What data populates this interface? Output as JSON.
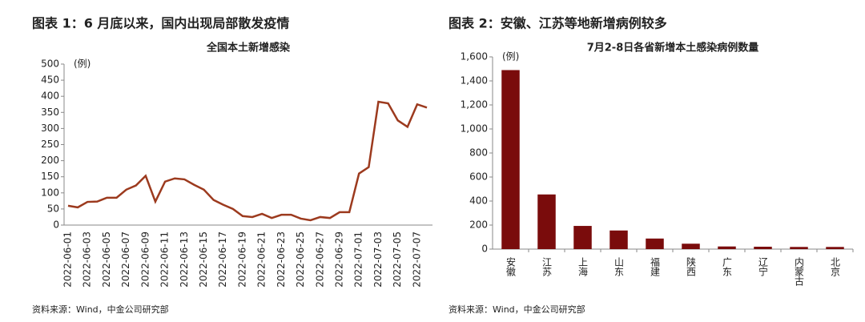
{
  "chart_data": [
    {
      "type": "line",
      "figure_title": "图表 1：6 月底以来，国内出现局部散发疫情",
      "title": "全国本土新增感染",
      "y_unit": "(例)",
      "source": "资料来源：Wind，中金公司研究部",
      "categories": [
        "2022-06-01",
        null,
        "2022-06-03",
        null,
        "2022-06-05",
        null,
        "2022-06-07",
        null,
        "2022-06-09",
        null,
        "2022-06-11",
        null,
        "2022-06-13",
        null,
        "2022-06-15",
        null,
        "2022-06-17",
        null,
        "2022-06-19",
        null,
        "2022-06-21",
        null,
        "2022-06-23",
        null,
        "2022-06-25",
        null,
        "2022-06-27",
        null,
        "2022-06-29",
        null,
        "2022-07-01",
        null,
        "2022-07-03",
        null,
        "2022-07-05",
        null,
        "2022-07-07",
        null
      ],
      "values": [
        60,
        55,
        72,
        73,
        85,
        85,
        110,
        123,
        153,
        73,
        135,
        145,
        142,
        125,
        110,
        78,
        63,
        50,
        28,
        25,
        35,
        22,
        32,
        32,
        20,
        15,
        25,
        22,
        40,
        40,
        160,
        180,
        383,
        378,
        325,
        305,
        375,
        365
      ],
      "color": "#9c3a1e",
      "ylim": [
        0,
        500
      ],
      "yticks": [
        0,
        50,
        100,
        150,
        200,
        250,
        300,
        350,
        400,
        450,
        500
      ]
    },
    {
      "type": "bar",
      "figure_title": "图表 2：安徽、江苏等地新增病例较多",
      "title": "7月2-8日各省新增本土感染病例数量",
      "y_unit": "(例)",
      "source": "资料来源：Wind，中金公司研究部",
      "categories": [
        "安徽",
        "江苏",
        "上海",
        "山东",
        "福建",
        "陕西",
        "广东",
        "辽宁",
        "内蒙古",
        "北京"
      ],
      "values": [
        1490,
        455,
        193,
        155,
        88,
        45,
        22,
        20,
        18,
        18
      ],
      "color": "#7a0c0c",
      "ylim": [
        0,
        1600
      ],
      "yticks": [
        0,
        200,
        400,
        600,
        800,
        {
          "value": 1000,
          "label": "1,000"
        },
        {
          "value": 1200,
          "label": "1,200"
        },
        {
          "value": 1400,
          "label": "1,400"
        },
        {
          "value": 1600,
          "label": "1,600"
        }
      ]
    }
  ]
}
